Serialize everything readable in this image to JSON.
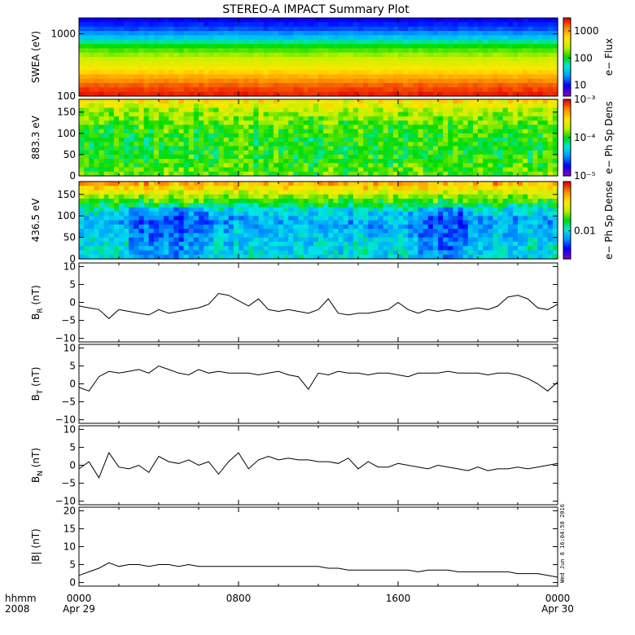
{
  "title": "STEREO-A IMPACT Summary Plot",
  "stamp": "Wed Jun 8 16:04:58 2016",
  "x_footer": {
    "left_labels": [
      "hhmm",
      "2008"
    ],
    "ticks": [
      {
        "label": "0000",
        "sub": "Apr 29",
        "hour": 0
      },
      {
        "label": "0800",
        "sub": "",
        "hour": 8
      },
      {
        "label": "1600",
        "sub": "",
        "hour": 16
      },
      {
        "label": "0000",
        "sub": "Apr 30",
        "hour": 24
      }
    ],
    "range_hours": [
      0,
      24
    ]
  },
  "colors": {
    "spectrogram": [
      "#7a00c8",
      "#0000ff",
      "#0096ff",
      "#00e6e6",
      "#00dc00",
      "#c8f000",
      "#ffe600",
      "#ff8c00",
      "#e60000"
    ],
    "line": "#000000",
    "frame": "#000000"
  },
  "chart_data": [
    {
      "type": "heatmap",
      "ylabel": "SWEA (eV)",
      "yscale": "log",
      "ylim": [
        100,
        1800
      ],
      "yticks": [
        "1000",
        "100"
      ],
      "ytick_values": [
        1000,
        100
      ],
      "colorbar": {
        "label": "e− Flux",
        "ticks": [
          "1000",
          "100",
          "10"
        ],
        "tick_values": [
          1000,
          100,
          10
        ],
        "range": [
          4,
          3000
        ],
        "scale": "log"
      },
      "rows_description_values": [
        {
          "energy_eV": 1800,
          "level": 0.12
        },
        {
          "energy_eV": 1400,
          "level": 0.18
        },
        {
          "energy_eV": 1000,
          "level": 0.3
        },
        {
          "energy_eV": 700,
          "level": 0.48
        },
        {
          "energy_eV": 500,
          "level": 0.58
        },
        {
          "energy_eV": 350,
          "level": 0.66
        },
        {
          "energy_eV": 250,
          "level": 0.74
        },
        {
          "energy_eV": 180,
          "level": 0.84
        },
        {
          "energy_eV": 130,
          "level": 0.92
        },
        {
          "energy_eV": 100,
          "level": 0.97
        }
      ]
    },
    {
      "type": "heatmap",
      "ylabel": "883.3 eV",
      "ylim": [
        0,
        180
      ],
      "yticks": [
        "150",
        "100",
        "50",
        "0"
      ],
      "ytick_values": [
        150,
        100,
        50,
        0
      ],
      "colorbar": {
        "label": "e− Ph Sp Dens",
        "ticks": [
          "10⁻³",
          "10⁻⁴",
          "10⁻⁵"
        ],
        "tick_values": [
          0.001,
          0.0001,
          1e-05
        ],
        "range": [
          1e-05,
          0.001
        ],
        "scale": "log"
      },
      "pitch_angle_levels": [
        {
          "pa": 170,
          "level": 0.72
        },
        {
          "pa": 150,
          "level": 0.62
        },
        {
          "pa": 130,
          "level": 0.56
        },
        {
          "pa": 110,
          "level": 0.52
        },
        {
          "pa": 90,
          "level": 0.5
        },
        {
          "pa": 70,
          "level": 0.5
        },
        {
          "pa": 50,
          "level": 0.5
        },
        {
          "pa": 30,
          "level": 0.52
        },
        {
          "pa": 10,
          "level": 0.55
        }
      ]
    },
    {
      "type": "heatmap",
      "ylabel": "436.5 eV",
      "ylim": [
        0,
        180
      ],
      "yticks": [
        "150",
        "100",
        "50",
        "0"
      ],
      "ytick_values": [
        150,
        100,
        50,
        0
      ],
      "colorbar": {
        "label": "e− Ph Sp Dense",
        "ticks": [
          "0.01"
        ],
        "tick_values": [
          0.01
        ],
        "range": [
          0.004,
          0.05
        ],
        "scale": "log"
      },
      "pitch_angle_levels": [
        {
          "pa": 170,
          "level": 0.82
        },
        {
          "pa": 150,
          "level": 0.66
        },
        {
          "pa": 130,
          "level": 0.5
        },
        {
          "pa": 110,
          "level": 0.36
        },
        {
          "pa": 90,
          "level": 0.28
        },
        {
          "pa": 70,
          "level": 0.3
        },
        {
          "pa": 50,
          "level": 0.33
        },
        {
          "pa": 30,
          "level": 0.35
        },
        {
          "pa": 10,
          "level": 0.36
        }
      ],
      "depletion_hours": [
        [
          2.5,
          6.5
        ],
        [
          17.0,
          19.5
        ]
      ]
    },
    {
      "type": "line",
      "ylabel": "B",
      "ylabel_sub": "R",
      "ylabel_unit": " (nT)",
      "ylim": [
        -11,
        11
      ],
      "yticks": [
        "10",
        "5",
        "0",
        "−5",
        "−10"
      ],
      "ytick_values": [
        10,
        5,
        0,
        -5,
        -10
      ],
      "x": [
        0,
        0.5,
        1,
        1.5,
        2,
        2.5,
        3,
        3.5,
        4,
        4.5,
        5,
        5.5,
        6,
        6.5,
        7,
        7.5,
        8,
        8.5,
        9,
        9.5,
        10,
        10.5,
        11,
        11.5,
        12,
        12.5,
        13,
        13.5,
        14,
        14.5,
        15,
        15.5,
        16,
        16.5,
        17,
        17.5,
        18,
        18.5,
        19,
        19.5,
        20,
        20.5,
        21,
        21.5,
        22,
        22.5,
        23,
        23.5,
        24
      ],
      "y": [
        -1,
        -1.5,
        -2,
        -4.5,
        -2,
        -2.5,
        -3,
        -3.5,
        -2,
        -3,
        -2.5,
        -2,
        -1.5,
        -0.5,
        2.5,
        2,
        0.5,
        -1,
        1,
        -2,
        -2.5,
        -2,
        -2.5,
        -3,
        -2,
        1,
        -3,
        -3.5,
        -3,
        -3,
        -2.5,
        -2,
        0,
        -2,
        -3,
        -2,
        -2.5,
        -2,
        -2.5,
        -2,
        -1.5,
        -2,
        -1,
        1.5,
        2,
        1,
        -1.5,
        -2,
        -0.5
      ]
    },
    {
      "type": "line",
      "ylabel": "B",
      "ylabel_sub": "T",
      "ylabel_unit": " (nT)",
      "ylim": [
        -11,
        11
      ],
      "yticks": [
        "10",
        "5",
        "0",
        "−5",
        "−10"
      ],
      "ytick_values": [
        10,
        5,
        0,
        -5,
        -10
      ],
      "x": [
        0,
        0.5,
        1,
        1.5,
        2,
        2.5,
        3,
        3.5,
        4,
        4.5,
        5,
        5.5,
        6,
        6.5,
        7,
        7.5,
        8,
        8.5,
        9,
        9.5,
        10,
        10.5,
        11,
        11.5,
        12,
        12.5,
        13,
        13.5,
        14,
        14.5,
        15,
        15.5,
        16,
        16.5,
        17,
        17.5,
        18,
        18.5,
        19,
        19.5,
        20,
        20.5,
        21,
        21.5,
        22,
        22.5,
        23,
        23.5,
        24
      ],
      "y": [
        -1,
        -2,
        2,
        3.5,
        3,
        3.5,
        4,
        3,
        5,
        4,
        3,
        2.5,
        4,
        3,
        3.5,
        3,
        3,
        3,
        2.5,
        3,
        3.5,
        2.5,
        2,
        -1.5,
        3,
        2.5,
        3.5,
        3,
        3,
        2.5,
        3,
        3,
        2.5,
        2,
        3,
        3,
        3,
        3.5,
        3,
        3,
        3,
        2.5,
        3,
        3,
        2.5,
        1.5,
        0,
        -2,
        0.5
      ]
    },
    {
      "type": "line",
      "ylabel": "B",
      "ylabel_sub": "N",
      "ylabel_unit": " (nT)",
      "ylim": [
        -11,
        11
      ],
      "yticks": [
        "10",
        "5",
        "0",
        "−5",
        "−10"
      ],
      "ytick_values": [
        10,
        5,
        0,
        -5,
        -10
      ],
      "x": [
        0,
        0.5,
        1,
        1.5,
        2,
        2.5,
        3,
        3.5,
        4,
        4.5,
        5,
        5.5,
        6,
        6.5,
        7,
        7.5,
        8,
        8.5,
        9,
        9.5,
        10,
        10.5,
        11,
        11.5,
        12,
        12.5,
        13,
        13.5,
        14,
        14.5,
        15,
        15.5,
        16,
        16.5,
        17,
        17.5,
        18,
        18.5,
        19,
        19.5,
        20,
        20.5,
        21,
        21.5,
        22,
        22.5,
        23,
        23.5,
        24
      ],
      "y": [
        -1,
        1,
        -3.5,
        3.5,
        -0.5,
        -1,
        0,
        -2,
        2.5,
        1,
        0.5,
        1.5,
        0,
        1,
        -2.5,
        1,
        3.5,
        -1,
        1.5,
        2.5,
        1.5,
        2,
        1.5,
        1.5,
        1,
        1,
        0.5,
        2,
        -1,
        1,
        -0.5,
        -0.5,
        0.5,
        0,
        -0.5,
        -1,
        0,
        -0.5,
        -1,
        -1.5,
        -0.5,
        -1.5,
        -1,
        -1,
        -0.5,
        -1,
        -0.5,
        0,
        0.5
      ]
    },
    {
      "type": "line",
      "ylabel": "|B| (nT)",
      "ylim": [
        -1,
        21
      ],
      "yticks": [
        "20",
        "15",
        "10",
        "5",
        "0"
      ],
      "ytick_values": [
        20,
        15,
        10,
        5,
        0
      ],
      "x": [
        0,
        0.5,
        1,
        1.5,
        2,
        2.5,
        3,
        3.5,
        4,
        4.5,
        5,
        5.5,
        6,
        6.5,
        7,
        7.5,
        8,
        8.5,
        9,
        9.5,
        10,
        10.5,
        11,
        11.5,
        12,
        12.5,
        13,
        13.5,
        14,
        14.5,
        15,
        15.5,
        16,
        16.5,
        17,
        17.5,
        18,
        18.5,
        19,
        19.5,
        20,
        20.5,
        21,
        21.5,
        22,
        22.5,
        23,
        23.5,
        24
      ],
      "y": [
        2,
        3,
        4,
        5.5,
        4.5,
        5,
        5,
        4.5,
        5,
        5,
        4.5,
        5,
        4.5,
        4.5,
        4.5,
        4.5,
        4.5,
        4.5,
        4.5,
        4.5,
        4.5,
        4.5,
        4.5,
        4.5,
        4.5,
        4,
        4,
        3.5,
        3.5,
        3.5,
        3.5,
        3.5,
        3.5,
        3.5,
        3,
        3.5,
        3.5,
        3.5,
        3,
        3,
        3,
        3,
        3,
        3,
        2.5,
        2.5,
        2.5,
        2,
        1.5
      ]
    }
  ]
}
